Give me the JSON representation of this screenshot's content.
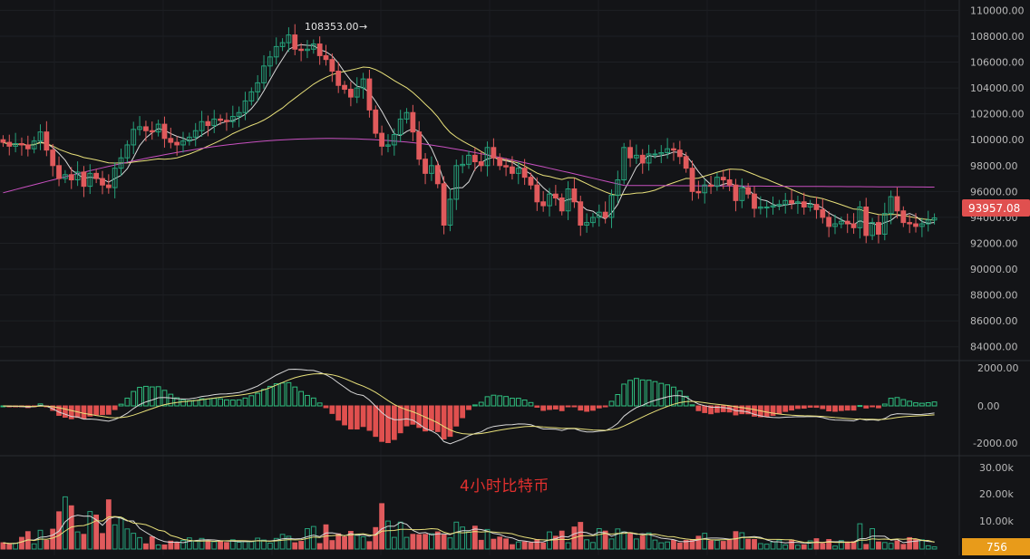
{
  "overlay_title": "4小时比特币",
  "price_panel": {
    "high_annotation": "108353.00",
    "current_price": "93957.08",
    "y_ticks": [
      "110000.00",
      "108000.00",
      "106000.00",
      "104000.00",
      "102000.00",
      "100000.00",
      "98000.00",
      "96000.00",
      "94000.00",
      "92000.00",
      "90000.00",
      "88000.00",
      "86000.00",
      "84000.00"
    ],
    "colors": {
      "up": "#26a17b",
      "down": "#e05a5c",
      "ma_fast": "#d8d8d8",
      "ma_mid": "#e8e07a",
      "ma_slow": "#c850c0",
      "current_badge": "#e0504f"
    }
  },
  "macd_panel": {
    "y_ticks": [
      "2000.00",
      "0.00",
      "-2000.00"
    ],
    "colors": {
      "dif": "#d8d8d8",
      "dea": "#e8e07a",
      "pos": "#2fbf7f",
      "neg": "#e0504f"
    }
  },
  "volume_panel": {
    "y_ticks": [
      "30.00k",
      "20.00k",
      "10.00k"
    ],
    "current_volume": "756",
    "colors": {
      "badge": "#e89b1a"
    }
  },
  "chart_data": {
    "type": "candlestick",
    "timeframe": "4h",
    "ylim": [
      83000,
      110800
    ],
    "high_label_value": 108353,
    "last_price": 93957.08,
    "close_series": [
      99800,
      99500,
      99700,
      99600,
      99300,
      99900,
      100600,
      99200,
      98000,
      97000,
      97300,
      96900,
      97500,
      96400,
      97400,
      97000,
      96500,
      96300,
      97800,
      98600,
      99600,
      100800,
      101000,
      100700,
      100600,
      101200,
      100100,
      99800,
      99600,
      99900,
      100200,
      100700,
      101400,
      101100,
      101600,
      101500,
      101400,
      101800,
      102100,
      103000,
      103700,
      104400,
      105700,
      106400,
      107200,
      107500,
      108100,
      107000,
      106900,
      107000,
      107400,
      106500,
      106200,
      105300,
      104200,
      103900,
      103300,
      104000,
      104700,
      102300,
      100500,
      99500,
      99600,
      100400,
      101600,
      102100,
      100600,
      98500,
      97400,
      98000,
      96600,
      93400,
      95400,
      98000,
      98100,
      98800,
      98300,
      98000,
      99400,
      98600,
      98000,
      97900,
      97400,
      97800,
      97100,
      96500,
      95200,
      94900,
      95800,
      95500,
      94500,
      96200,
      95200,
      93400,
      93600,
      94000,
      94400,
      94000,
      95700,
      96900,
      99400,
      98600,
      98800,
      98200,
      98900,
      98900,
      99000,
      99300,
      99200,
      98700,
      97800,
      96000,
      95900,
      96500,
      96400,
      97100,
      96900,
      96500,
      95300,
      96300,
      95800,
      94700,
      94800,
      94800,
      94900,
      95000,
      95300,
      95100,
      95200,
      94800,
      95000,
      94600,
      94000,
      93300,
      93500,
      93700,
      93500,
      93200,
      94800,
      92600,
      93600,
      92700,
      94300,
      95600,
      94500,
      93600,
      93500,
      93300,
      93500,
      93800,
      93957
    ],
    "volume_series": [
      2.3,
      1.8,
      2.1,
      4.3,
      6.4,
      1.9,
      6.9,
      3.2,
      7.3,
      13.7,
      19.2,
      15.9,
      6.3,
      5.4,
      13.8,
      12.5,
      5.7,
      18.1,
      8.9,
      11.5,
      7.4,
      5.8,
      4.2,
      1.9,
      4.5,
      1.5,
      1.5,
      2.9,
      2.5,
      3.2,
      4.1,
      2.9,
      3.9,
      3.0,
      2.7,
      2.9,
      2.4,
      3.4,
      2.5,
      2.7,
      2.7,
      4.0,
      3.3,
      2.2,
      3.9,
      5.4,
      4.7,
      2.3,
      2.8,
      7.5,
      8.3,
      2.0,
      8.9,
      3.1,
      5.6,
      4.5,
      6.5,
      5.4,
      4.5,
      2.7,
      7.9,
      16.7,
      10.3,
      4.3,
      9.9,
      4.3,
      5.4,
      5.3,
      5.4,
      5.6,
      6.3,
      5.2,
      4.1,
      9.9,
      8.1,
      6.3,
      8.4,
      3.2,
      7.2,
      3.6,
      4.4,
      3.7,
      1.6,
      2.6,
      2.6,
      2.3,
      3.5,
      2.2,
      6.3,
      4.7,
      6.6,
      2.3,
      8.1,
      9.8,
      3.4,
      2.4,
      7.5,
      6.6,
      3.7,
      7.4,
      6.3,
      5.9,
      3.7,
      4.8,
      5.9,
      3.3,
      2.3,
      2.6,
      3.2,
      2.2,
      3.2,
      3.5,
      4.7,
      5.8,
      3.0,
      3.2,
      2.8,
      3.3,
      6.4,
      6.0,
      3.6,
      3.5,
      2.0,
      1.8,
      2.6,
      3.3,
      1.5,
      3.3,
      1.4,
      1.6,
      3.0,
      3.8,
      2.0,
      3.5,
      1.1,
      3.1,
      2.6,
      2.7,
      9.3,
      1.7,
      7.5,
      2.6,
      2.4,
      2.1,
      3.0,
      1.7,
      4.2,
      3.5,
      3.4,
      1.2,
      0.8
    ]
  }
}
